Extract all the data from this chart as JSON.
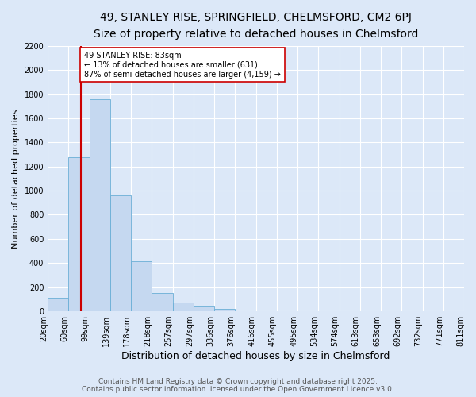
{
  "title_line1": "49, STANLEY RISE, SPRINGFIELD, CHELMSFORD, CM2 6PJ",
  "title_line2": "Size of property relative to detached houses in Chelmsford",
  "xlabel": "Distribution of detached houses by size in Chelmsford",
  "ylabel": "Number of detached properties",
  "footer_line1": "Contains HM Land Registry data © Crown copyright and database right 2025.",
  "footer_line2": "Contains public sector information licensed under the Open Government Licence v3.0.",
  "bin_labels": [
    "20sqm",
    "60sqm",
    "99sqm",
    "139sqm",
    "178sqm",
    "218sqm",
    "257sqm",
    "297sqm",
    "336sqm",
    "376sqm",
    "416sqm",
    "455sqm",
    "495sqm",
    "534sqm",
    "574sqm",
    "613sqm",
    "653sqm",
    "692sqm",
    "732sqm",
    "771sqm",
    "811sqm"
  ],
  "bar_values": [
    110,
    1280,
    1760,
    960,
    415,
    150,
    75,
    40,
    20,
    0,
    0,
    0,
    0,
    0,
    0,
    0,
    0,
    0,
    0,
    0
  ],
  "bar_color": "#c5d8f0",
  "bar_edge_color": "#6aaed6",
  "marker_color": "#cc0000",
  "annotation_text": "49 STANLEY RISE: 83sqm\n← 13% of detached houses are smaller (631)\n87% of semi-detached houses are larger (4,159) →",
  "annotation_box_color": "#ffffff",
  "annotation_box_edge": "#cc0000",
  "ylim": [
    0,
    2200
  ],
  "yticks": [
    0,
    200,
    400,
    600,
    800,
    1000,
    1200,
    1400,
    1600,
    1800,
    2000,
    2200
  ],
  "background_color": "#dce8f8",
  "plot_bg_color": "#dce8f8",
  "grid_color": "#ffffff",
  "title1_fontsize": 10,
  "title2_fontsize": 9,
  "xlabel_fontsize": 9,
  "ylabel_fontsize": 8,
  "footer_fontsize": 6.5,
  "tick_fontsize": 7,
  "annot_fontsize": 7
}
